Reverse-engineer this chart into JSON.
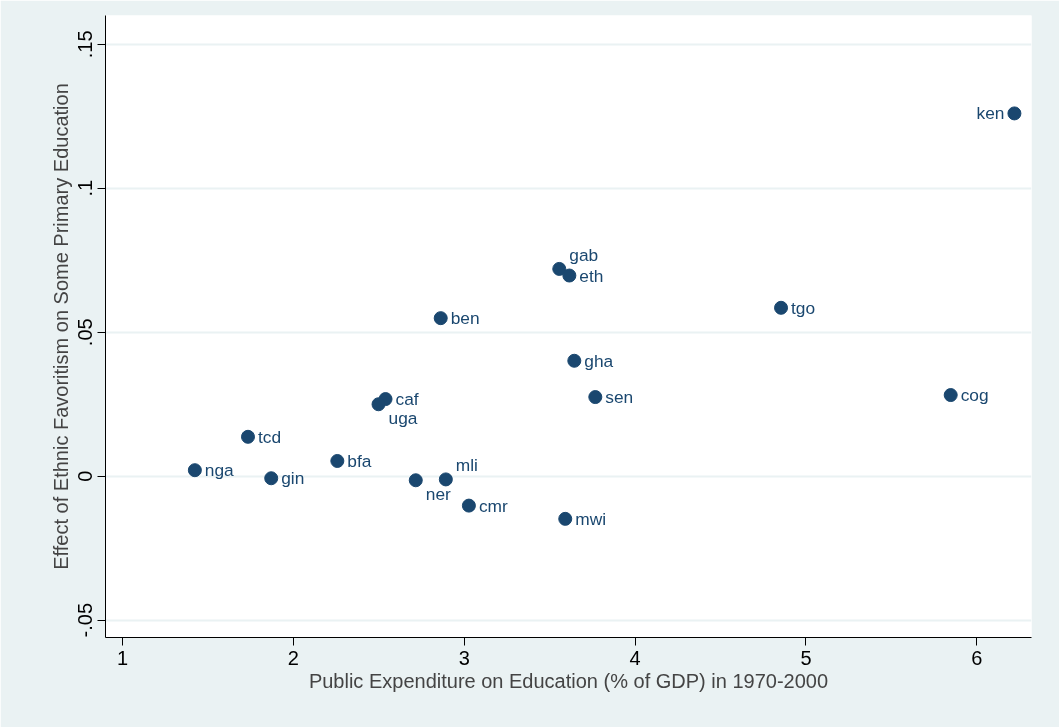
{
  "chart_data": {
    "type": "scatter",
    "xlabel": "Public Expenditure on Education (% of GDP) in 1970-2000",
    "ylabel": "Effect of Ethnic Favoritism on Some Primary Education",
    "x": [
      6.22,
      3.556,
      3.615,
      4.854,
      2.862,
      3.644,
      5.847,
      3.767,
      2.539,
      2.498,
      1.734,
      1.423,
      2.257,
      1.87,
      2.716,
      2.892,
      3.027,
      3.591
    ],
    "series": [
      {
        "color": "#1a476f",
        "values": [
          0.126,
          0.072,
          0.0697,
          0.0585,
          0.0549,
          0.0401,
          0.0282,
          0.0275,
          0.0268,
          0.025,
          0.0137,
          0.0021,
          0.0053,
          -0.0007,
          -0.0014,
          -0.0011,
          -0.0102,
          -0.0148
        ]
      }
    ],
    "annotations": [
      {
        "text": "ken",
        "x": 6.22,
        "y": 0.126
      },
      {
        "text": "gab",
        "x": 3.556,
        "y": 0.072
      },
      {
        "text": "eth",
        "x": 3.615,
        "y": 0.0697
      },
      {
        "text": "tgo",
        "x": 4.854,
        "y": 0.0585
      },
      {
        "text": "ben",
        "x": 2.862,
        "y": 0.0549
      },
      {
        "text": "gha",
        "x": 3.644,
        "y": 0.0401
      },
      {
        "text": "cog",
        "x": 5.847,
        "y": 0.0282
      },
      {
        "text": "sen",
        "x": 3.767,
        "y": 0.0275
      },
      {
        "text": "caf",
        "x": 2.539,
        "y": 0.0268
      },
      {
        "text": "uga",
        "x": 2.498,
        "y": 0.025
      },
      {
        "text": "tcd",
        "x": 1.734,
        "y": 0.0137
      },
      {
        "text": "nga",
        "x": 1.423,
        "y": 0.0021
      },
      {
        "text": "bfa",
        "x": 2.257,
        "y": 0.0053
      },
      {
        "text": "gin",
        "x": 1.87,
        "y": -0.0007
      },
      {
        "text": "ner",
        "x": 2.716,
        "y": -0.0014
      },
      {
        "text": "mli",
        "x": 2.892,
        "y": -0.0011
      },
      {
        "text": "cmr",
        "x": 3.027,
        "y": -0.0102
      },
      {
        "text": "mwi",
        "x": 3.591,
        "y": -0.0148
      }
    ],
    "xlim": [
      0.9,
      6.32
    ],
    "ylim": [
      -0.056,
      0.16
    ],
    "xticks": [
      1,
      2,
      3,
      4,
      5,
      6
    ],
    "yticks": [
      {
        "value": -0.05,
        "label": "-.05"
      },
      0,
      {
        "value": 0.05,
        "label": ".05"
      },
      {
        "value": 0.1,
        "label": ".1"
      },
      {
        "value": 0.15,
        "label": ".15"
      }
    ],
    "grid": "y",
    "marker": "circle"
  }
}
